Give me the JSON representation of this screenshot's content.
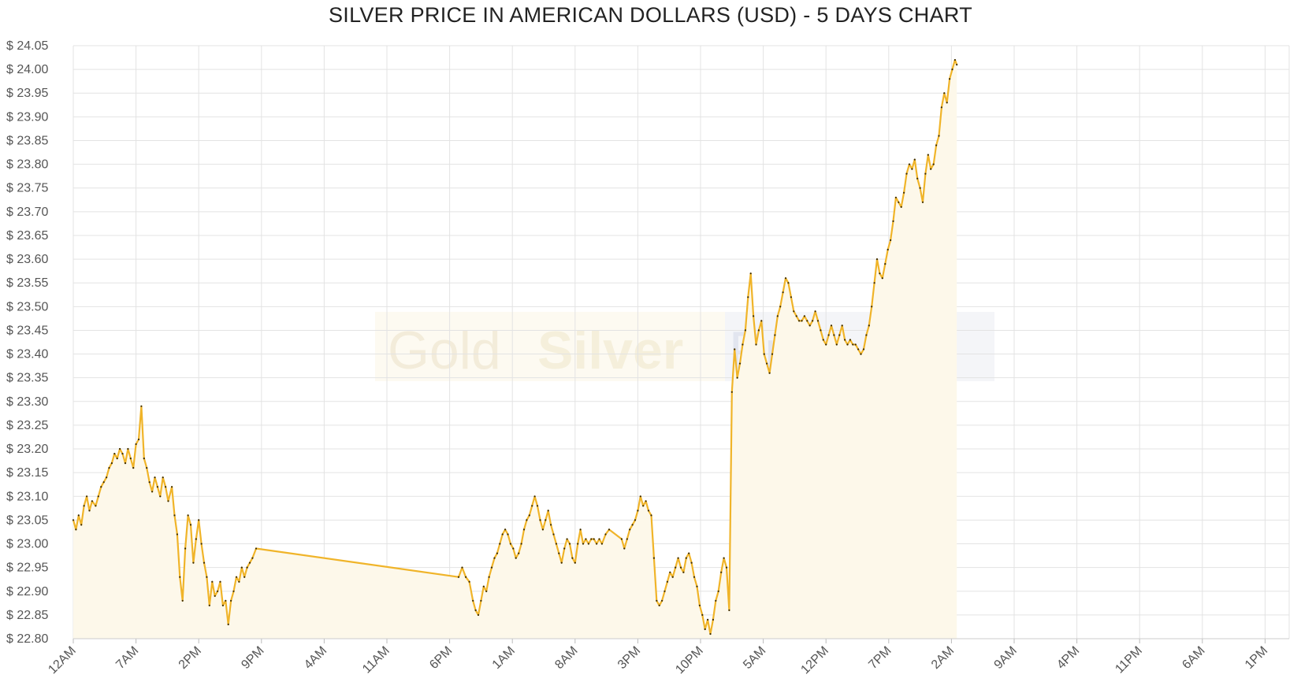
{
  "chart_data": {
    "type": "line",
    "title": "SILVER PRICE IN AMERICAN DOLLARS (USD) - 5 DAYS CHART",
    "ylim": [
      22.8,
      24.05
    ],
    "yticks": [
      "$ 24.05",
      "$ 24.00",
      "$ 23.95",
      "$ 23.90",
      "$ 23.85",
      "$ 23.80",
      "$ 23.75",
      "$ 23.70",
      "$ 23.65",
      "$ 23.60",
      "$ 23.55",
      "$ 23.50",
      "$ 23.45",
      "$ 23.40",
      "$ 23.35",
      "$ 23.30",
      "$ 23.25",
      "$ 23.20",
      "$ 23.15",
      "$ 23.10",
      "$ 23.05",
      "$ 23.00",
      "$ 22.95",
      "$ 22.90",
      "$ 22.85",
      "$ 22.80"
    ],
    "xticks": [
      "12AM",
      "7AM",
      "2PM",
      "9PM",
      "4AM",
      "11AM",
      "6PM",
      "1AM",
      "8AM",
      "3PM",
      "10PM",
      "5AM",
      "12PM",
      "7PM",
      "2AM",
      "9AM",
      "4PM",
      "11PM",
      "6AM",
      "1PM"
    ],
    "x_unit": "hours",
    "grid": true,
    "line_color": "#f0b429",
    "fill_color": "#fdf8ea",
    "series": [
      {
        "points": [
          [
            0,
            23.05
          ],
          [
            0.3,
            23.03
          ],
          [
            0.6,
            23.06
          ],
          [
            0.9,
            23.04
          ],
          [
            1.2,
            23.08
          ],
          [
            1.5,
            23.1
          ],
          [
            1.8,
            23.07
          ],
          [
            2.1,
            23.09
          ],
          [
            2.5,
            23.08
          ],
          [
            2.8,
            23.1
          ],
          [
            3.1,
            23.12
          ],
          [
            3.4,
            23.13
          ],
          [
            3.7,
            23.14
          ],
          [
            4.0,
            23.16
          ],
          [
            4.3,
            23.17
          ],
          [
            4.6,
            23.19
          ],
          [
            4.9,
            23.18
          ],
          [
            5.2,
            23.2
          ],
          [
            5.5,
            23.19
          ],
          [
            5.8,
            23.17
          ],
          [
            6.1,
            23.2
          ],
          [
            6.4,
            23.18
          ],
          [
            6.7,
            23.16
          ],
          [
            7.0,
            23.21
          ],
          [
            7.3,
            23.22
          ],
          [
            7.6,
            23.29
          ],
          [
            7.9,
            23.18
          ],
          [
            8.2,
            23.16
          ],
          [
            8.5,
            23.13
          ],
          [
            8.8,
            23.11
          ],
          [
            9.1,
            23.14
          ],
          [
            9.4,
            23.12
          ],
          [
            9.7,
            23.1
          ],
          [
            10.0,
            23.14
          ],
          [
            10.3,
            23.12
          ],
          [
            10.6,
            23.09
          ],
          [
            11.0,
            23.12
          ],
          [
            11.3,
            23.06
          ],
          [
            11.6,
            23.02
          ],
          [
            11.9,
            22.93
          ],
          [
            12.2,
            22.88
          ],
          [
            12.5,
            22.99
          ],
          [
            12.8,
            23.06
          ],
          [
            13.1,
            23.04
          ],
          [
            13.4,
            22.96
          ],
          [
            13.7,
            23.01
          ],
          [
            14.0,
            23.05
          ],
          [
            14.3,
            23.0
          ],
          [
            14.6,
            22.96
          ],
          [
            14.9,
            22.93
          ],
          [
            15.2,
            22.87
          ],
          [
            15.5,
            22.92
          ],
          [
            15.8,
            22.89
          ],
          [
            16.1,
            22.9
          ],
          [
            16.4,
            22.92
          ],
          [
            16.7,
            22.87
          ],
          [
            17.0,
            22.88
          ],
          [
            17.3,
            22.83
          ],
          [
            17.6,
            22.88
          ],
          [
            17.9,
            22.9
          ],
          [
            18.2,
            22.93
          ],
          [
            18.5,
            22.92
          ],
          [
            18.8,
            22.95
          ],
          [
            19.1,
            22.93
          ],
          [
            19.4,
            22.95
          ],
          [
            19.7,
            22.96
          ],
          [
            20.0,
            22.97
          ],
          [
            20.4,
            22.99
          ],
          [
            43.0,
            22.93
          ],
          [
            43.4,
            22.95
          ],
          [
            43.8,
            22.93
          ],
          [
            44.2,
            22.92
          ],
          [
            44.6,
            22.88
          ],
          [
            44.9,
            22.86
          ],
          [
            45.2,
            22.85
          ],
          [
            45.5,
            22.88
          ],
          [
            45.8,
            22.91
          ],
          [
            46.1,
            22.9
          ],
          [
            46.4,
            22.93
          ],
          [
            46.7,
            22.95
          ],
          [
            47.0,
            22.97
          ],
          [
            47.3,
            22.98
          ],
          [
            47.6,
            23.0
          ],
          [
            47.9,
            23.02
          ],
          [
            48.2,
            23.03
          ],
          [
            48.5,
            23.02
          ],
          [
            48.8,
            23.0
          ],
          [
            49.1,
            22.99
          ],
          [
            49.4,
            22.97
          ],
          [
            49.7,
            22.98
          ],
          [
            50.0,
            23.0
          ],
          [
            50.3,
            23.03
          ],
          [
            50.6,
            23.05
          ],
          [
            50.9,
            23.06
          ],
          [
            51.2,
            23.08
          ],
          [
            51.5,
            23.1
          ],
          [
            51.8,
            23.08
          ],
          [
            52.1,
            23.05
          ],
          [
            52.4,
            23.03
          ],
          [
            52.7,
            23.05
          ],
          [
            53.0,
            23.07
          ],
          [
            53.3,
            23.04
          ],
          [
            53.6,
            23.02
          ],
          [
            53.9,
            23.0
          ],
          [
            54.2,
            22.98
          ],
          [
            54.5,
            22.96
          ],
          [
            54.8,
            22.99
          ],
          [
            55.1,
            23.01
          ],
          [
            55.4,
            23.0
          ],
          [
            55.7,
            22.97
          ],
          [
            56.0,
            22.96
          ],
          [
            56.3,
            23.0
          ],
          [
            56.6,
            23.03
          ],
          [
            56.9,
            23.0
          ],
          [
            57.2,
            23.01
          ],
          [
            57.5,
            23.0
          ],
          [
            57.8,
            23.01
          ],
          [
            58.1,
            23.01
          ],
          [
            58.4,
            23.0
          ],
          [
            58.7,
            23.01
          ],
          [
            59.0,
            23.0
          ],
          [
            59.4,
            23.02
          ],
          [
            59.8,
            23.03
          ],
          [
            61.2,
            23.01
          ],
          [
            61.5,
            22.99
          ],
          [
            61.8,
            23.01
          ],
          [
            62.1,
            23.03
          ],
          [
            62.4,
            23.04
          ],
          [
            62.7,
            23.05
          ],
          [
            63.0,
            23.07
          ],
          [
            63.3,
            23.1
          ],
          [
            63.6,
            23.08
          ],
          [
            63.9,
            23.09
          ],
          [
            64.2,
            23.07
          ],
          [
            64.5,
            23.06
          ],
          [
            64.8,
            22.97
          ],
          [
            65.1,
            22.88
          ],
          [
            65.4,
            22.87
          ],
          [
            65.7,
            22.88
          ],
          [
            66.0,
            22.9
          ],
          [
            66.3,
            22.92
          ],
          [
            66.6,
            22.94
          ],
          [
            66.9,
            22.93
          ],
          [
            67.2,
            22.95
          ],
          [
            67.5,
            22.97
          ],
          [
            67.8,
            22.95
          ],
          [
            68.1,
            22.94
          ],
          [
            68.4,
            22.97
          ],
          [
            68.7,
            22.98
          ],
          [
            69.0,
            22.96
          ],
          [
            69.3,
            22.93
          ],
          [
            69.6,
            22.91
          ],
          [
            69.9,
            22.87
          ],
          [
            70.2,
            22.85
          ],
          [
            70.5,
            22.82
          ],
          [
            70.8,
            22.84
          ],
          [
            71.1,
            22.81
          ],
          [
            71.4,
            22.84
          ],
          [
            71.7,
            22.88
          ],
          [
            72.0,
            22.9
          ],
          [
            72.3,
            22.94
          ],
          [
            72.6,
            22.97
          ],
          [
            72.9,
            22.95
          ],
          [
            73.2,
            22.86
          ],
          [
            73.5,
            23.32
          ],
          [
            73.8,
            23.41
          ],
          [
            74.1,
            23.35
          ],
          [
            74.4,
            23.38
          ],
          [
            74.7,
            23.42
          ],
          [
            75.0,
            23.45
          ],
          [
            75.3,
            23.52
          ],
          [
            75.6,
            23.57
          ],
          [
            75.9,
            23.48
          ],
          [
            76.2,
            23.42
          ],
          [
            76.5,
            23.45
          ],
          [
            76.8,
            23.47
          ],
          [
            77.1,
            23.4
          ],
          [
            77.4,
            23.38
          ],
          [
            77.7,
            23.36
          ],
          [
            78.0,
            23.4
          ],
          [
            78.3,
            23.44
          ],
          [
            78.6,
            23.48
          ],
          [
            78.9,
            23.5
          ],
          [
            79.2,
            23.53
          ],
          [
            79.5,
            23.56
          ],
          [
            79.8,
            23.55
          ],
          [
            80.1,
            23.52
          ],
          [
            80.4,
            23.49
          ],
          [
            80.7,
            23.48
          ],
          [
            81.0,
            23.47
          ],
          [
            81.3,
            23.47
          ],
          [
            81.6,
            23.48
          ],
          [
            81.9,
            23.47
          ],
          [
            82.2,
            23.46
          ],
          [
            82.5,
            23.47
          ],
          [
            82.8,
            23.49
          ],
          [
            83.1,
            23.47
          ],
          [
            83.4,
            23.45
          ],
          [
            83.7,
            23.43
          ],
          [
            84.0,
            23.42
          ],
          [
            84.3,
            23.44
          ],
          [
            84.6,
            23.46
          ],
          [
            84.9,
            23.44
          ],
          [
            85.2,
            23.42
          ],
          [
            85.5,
            23.44
          ],
          [
            85.8,
            23.46
          ],
          [
            86.1,
            23.43
          ],
          [
            86.4,
            23.42
          ],
          [
            86.7,
            23.43
          ],
          [
            87.0,
            23.42
          ],
          [
            87.3,
            23.42
          ],
          [
            87.6,
            23.41
          ],
          [
            87.9,
            23.4
          ],
          [
            88.2,
            23.41
          ],
          [
            88.5,
            23.44
          ],
          [
            88.8,
            23.46
          ],
          [
            89.1,
            23.5
          ],
          [
            89.4,
            23.55
          ],
          [
            89.7,
            23.6
          ],
          [
            90.0,
            23.57
          ],
          [
            90.3,
            23.56
          ],
          [
            90.6,
            23.59
          ],
          [
            90.9,
            23.62
          ],
          [
            91.2,
            23.64
          ],
          [
            91.5,
            23.68
          ],
          [
            91.8,
            23.73
          ],
          [
            92.1,
            23.72
          ],
          [
            92.4,
            23.71
          ],
          [
            92.7,
            23.74
          ],
          [
            93.0,
            23.78
          ],
          [
            93.3,
            23.8
          ],
          [
            93.6,
            23.79
          ],
          [
            93.9,
            23.81
          ],
          [
            94.2,
            23.77
          ],
          [
            94.5,
            23.75
          ],
          [
            94.8,
            23.72
          ],
          [
            95.1,
            23.78
          ],
          [
            95.4,
            23.82
          ],
          [
            95.7,
            23.79
          ],
          [
            96.0,
            23.8
          ],
          [
            96.3,
            23.84
          ],
          [
            96.6,
            23.86
          ],
          [
            96.9,
            23.92
          ],
          [
            97.2,
            23.95
          ],
          [
            97.5,
            23.93
          ],
          [
            97.8,
            23.98
          ],
          [
            98.1,
            24.0
          ],
          [
            98.4,
            24.02
          ],
          [
            98.6,
            24.01
          ]
        ]
      }
    ]
  }
}
